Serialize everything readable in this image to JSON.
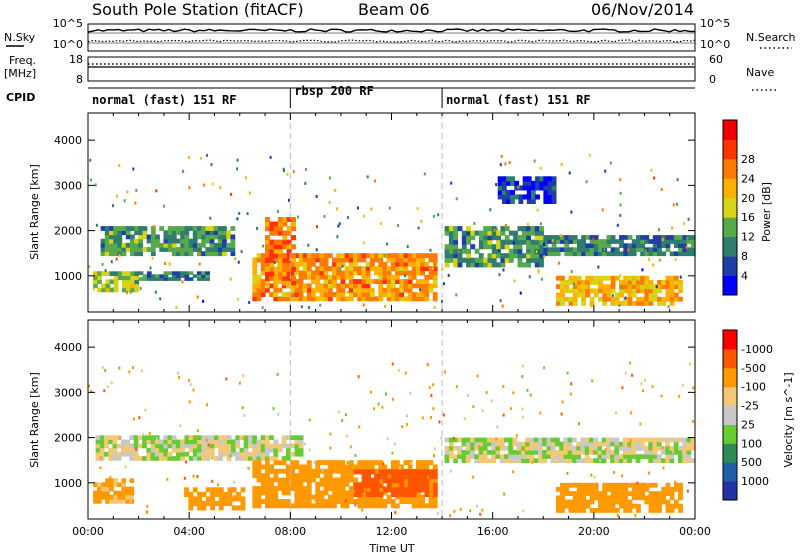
{
  "header": {
    "title": "South Pole Station (fitACF)",
    "beam": "Beam 06",
    "date": "06/Nov/2014"
  },
  "side_labels": {
    "nsky": "N.Sky",
    "nsearch": "N.Search",
    "freq": "Freq.",
    "freq_unit": "[MHz]",
    "nave": "Nave",
    "cpid": "CPID"
  },
  "top_panels": {
    "noise_ticks_left": [
      "10^5",
      "10^0"
    ],
    "noise_ticks_right": [
      "10^5",
      "10^0"
    ],
    "freq_ticks_left": [
      "18",
      "8"
    ],
    "nave_ticks_right": [
      "60",
      "0"
    ]
  },
  "cpid_modes": [
    {
      "label": "normal (fast) 151 RF",
      "start_hour": 0
    },
    {
      "label": "rbsp 200 RF",
      "start_hour": 8
    },
    {
      "label": "normal (fast) 151 RF",
      "start_hour": 14
    }
  ],
  "colors": {
    "power": [
      "#0000ff",
      "#1e3fa8",
      "#2e7d6e",
      "#58a94b",
      "#d6d416",
      "#ffb000",
      "#ff7a00",
      "#ff3300",
      "#ee0000"
    ],
    "velocity": [
      "#ff0000",
      "#ff5500",
      "#ff9900",
      "#f5c878",
      "#c8c8c8",
      "#66cc33",
      "#2e8b57",
      "#1e5fa8",
      "#2233aa"
    ],
    "ground_scatter": "#bdbdbd"
  },
  "chart_data": [
    {
      "type": "heatmap",
      "title": "Power [dB]",
      "xlabel": "",
      "ylabel": "Slant Range [km]",
      "xlim": [
        0,
        24
      ],
      "ylim": [
        200,
        4600
      ],
      "yticks": [
        "1000",
        "2000",
        "3000",
        "4000"
      ],
      "colorbar_label": "Power [dB]",
      "colorbar_ticks": [
        "4",
        "8",
        "12",
        "16",
        "20",
        "24",
        "28"
      ],
      "bands": [
        {
          "t0": 0.5,
          "t1": 5.8,
          "r0": 1450,
          "r1": 2100,
          "value": 12
        },
        {
          "t0": 0.2,
          "t1": 2.0,
          "r0": 650,
          "r1": 1100,
          "value": 16
        },
        {
          "t0": 2.0,
          "t1": 4.8,
          "r0": 900,
          "r1": 1100,
          "value": 10
        },
        {
          "t0": 6.5,
          "t1": 13.8,
          "r0": 450,
          "r1": 1500,
          "value": 24
        },
        {
          "t0": 7.0,
          "t1": 8.2,
          "r0": 800,
          "r1": 2300,
          "value": 26
        },
        {
          "t0": 14.1,
          "t1": 18.0,
          "r0": 1200,
          "r1": 2100,
          "value": 12
        },
        {
          "t0": 18.0,
          "t1": 24.0,
          "r0": 1450,
          "r1": 1900,
          "value": 10
        },
        {
          "t0": 16.2,
          "t1": 18.5,
          "r0": 2600,
          "r1": 3200,
          "value": 5
        },
        {
          "t0": 18.5,
          "t1": 23.5,
          "r0": 350,
          "r1": 1000,
          "value": 22
        }
      ]
    },
    {
      "type": "heatmap",
      "title": "Velocity [m s^-1]",
      "xlabel": "Time UT",
      "ylabel": "Slant Range [km]",
      "xlim": [
        0,
        24
      ],
      "ylim": [
        200,
        4600
      ],
      "xticks": [
        "00:00",
        "04:00",
        "08:00",
        "12:00",
        "16:00",
        "20:00",
        "00:00"
      ],
      "yticks": [
        "1000",
        "2000",
        "3000",
        "4000"
      ],
      "colorbar_label": "Velocity [m s^-1]",
      "colorbar_ticks": [
        "1000",
        "500",
        "100",
        "25",
        "-25",
        "-100",
        "-500",
        "-1000"
      ],
      "bands": [
        {
          "t0": 0.3,
          "t1": 8.5,
          "r0": 1500,
          "r1": 2050,
          "value": 0
        },
        {
          "t0": 0.2,
          "t1": 1.8,
          "r0": 550,
          "r1": 1100,
          "value": -150
        },
        {
          "t0": 6.5,
          "t1": 13.8,
          "r0": 450,
          "r1": 1500,
          "value": -250
        },
        {
          "t0": 3.8,
          "t1": 6.2,
          "r0": 400,
          "r1": 900,
          "value": -200
        },
        {
          "t0": 14.1,
          "t1": 24.0,
          "r0": 1450,
          "r1": 2000,
          "value": 0
        },
        {
          "t0": 18.5,
          "t1": 23.5,
          "r0": 350,
          "r1": 1000,
          "value": -300
        },
        {
          "t0": 10.5,
          "t1": 13.8,
          "r0": 700,
          "r1": 1300,
          "value": -600
        }
      ]
    }
  ]
}
